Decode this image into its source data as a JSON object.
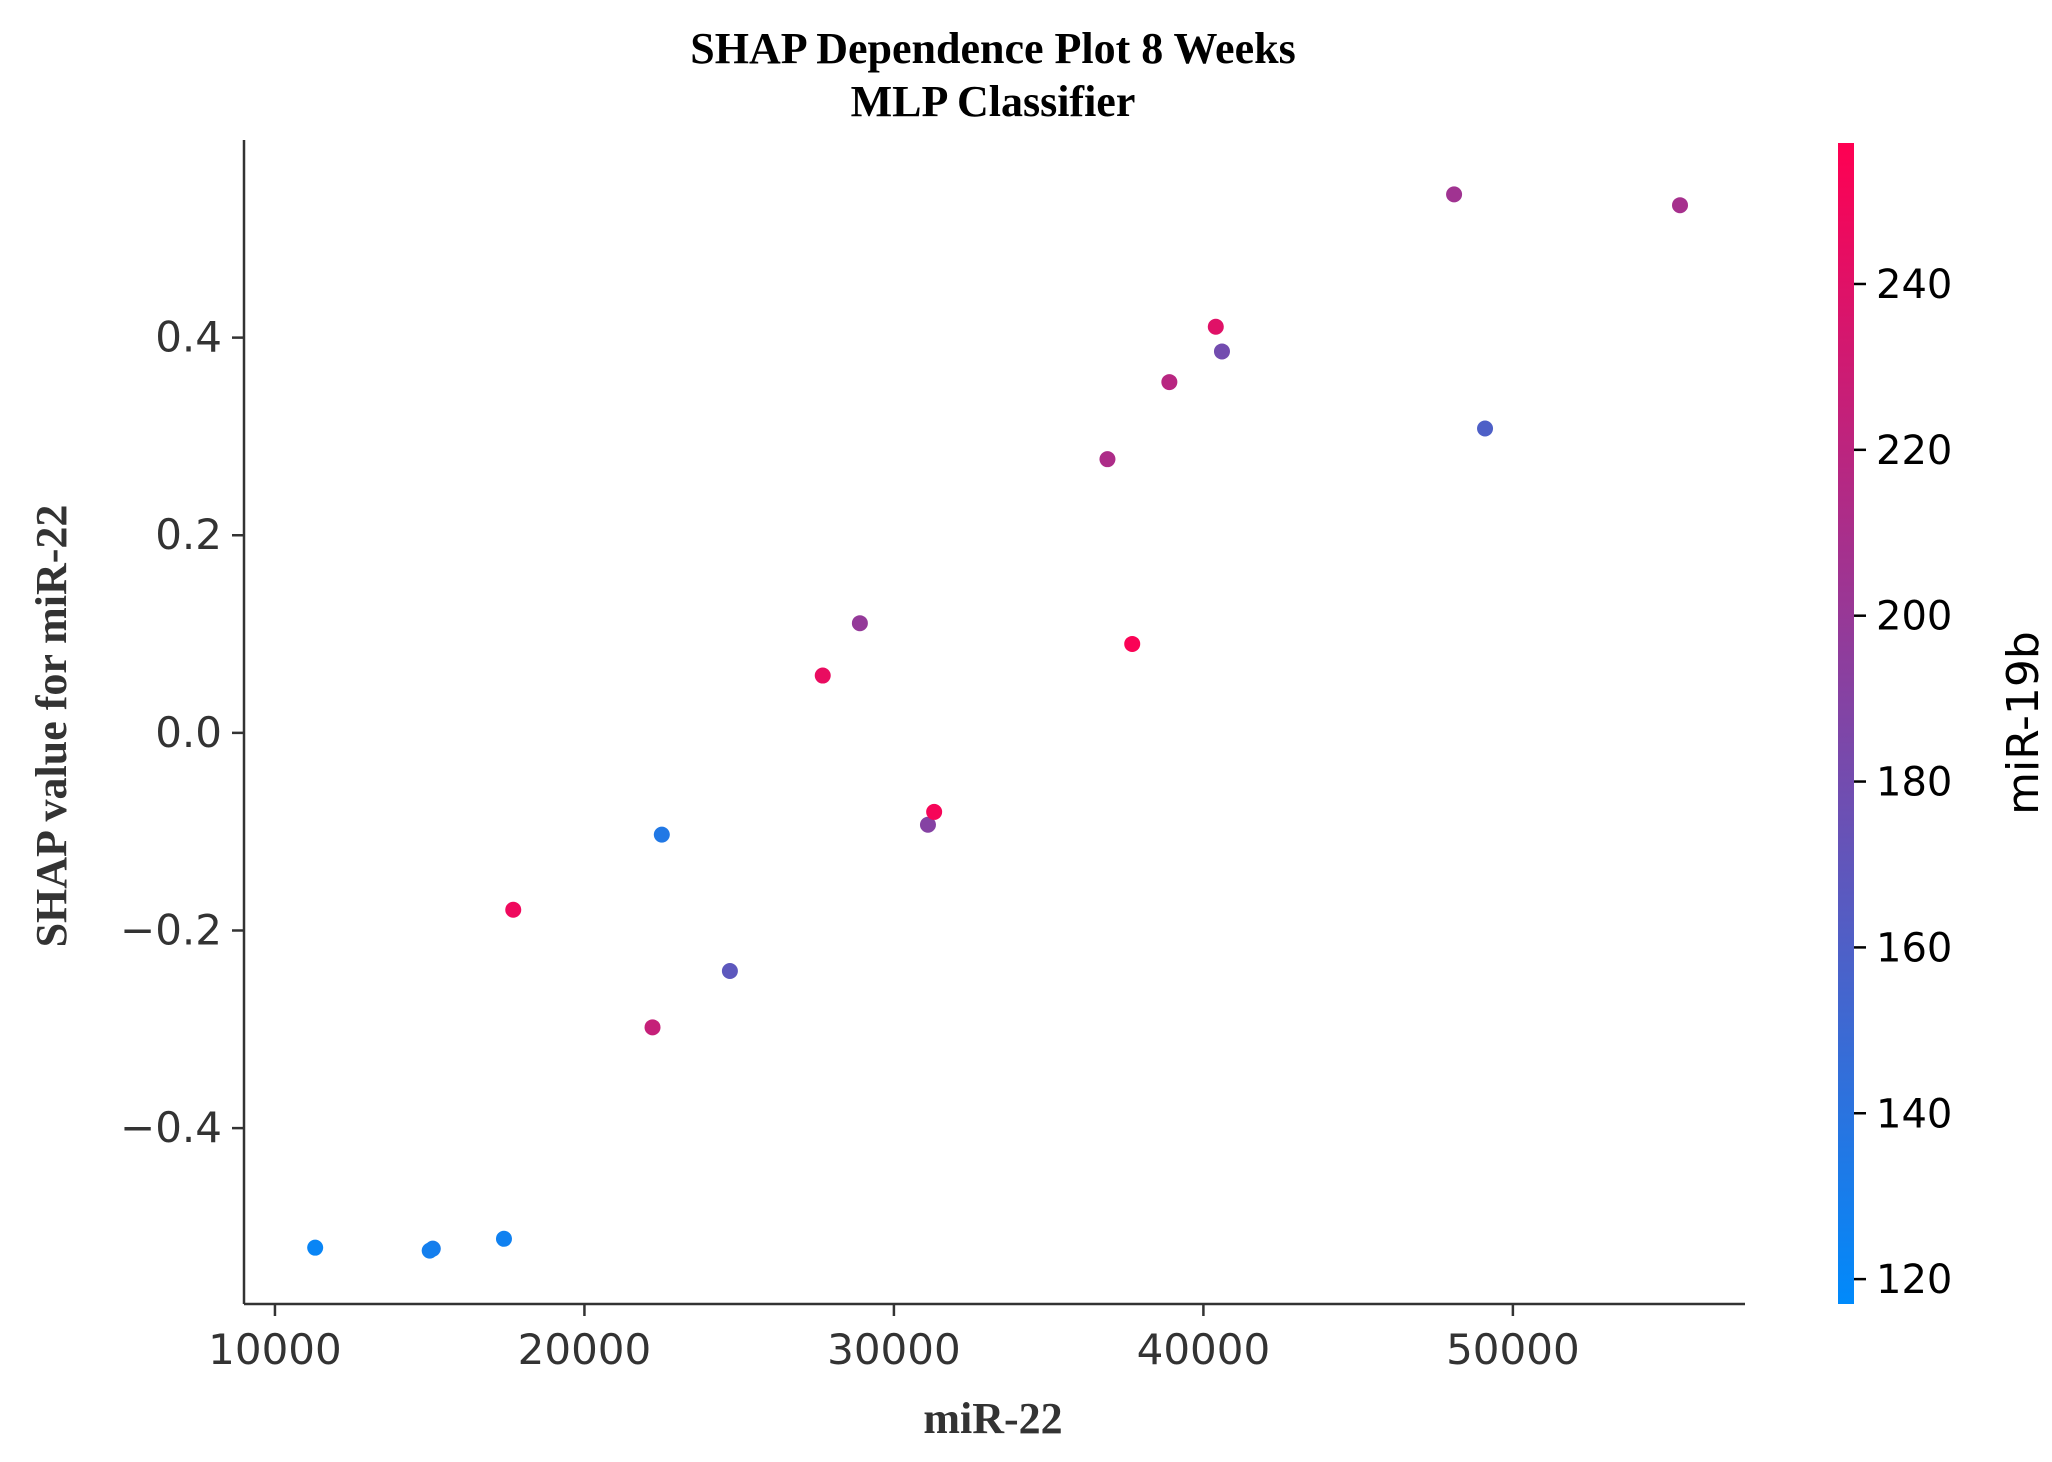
{
  "chart_data": {
    "type": "scatter",
    "title": "SHAP Dependence Plot 8 Weeks",
    "subtitle": "MLP Classifier",
    "xlabel": "miR-22",
    "ylabel": "SHAP value for miR-22",
    "xlim": [
      9000,
      57500
    ],
    "ylim": [
      -0.578,
      0.6
    ],
    "x_ticks": [
      10000,
      20000,
      30000,
      40000,
      50000
    ],
    "x_tick_labels": [
      "10000",
      "20000",
      "30000",
      "40000",
      "50000"
    ],
    "y_ticks": [
      0.4,
      0.2,
      0.0,
      -0.2,
      -0.4
    ],
    "y_tick_labels": [
      "0.4",
      "0.2",
      "0.0",
      "−0.2",
      "−0.4"
    ],
    "colorbar": {
      "label": "miR-19b",
      "range": [
        117,
        257
      ],
      "ticks": [
        120,
        140,
        160,
        180,
        200,
        220,
        240
      ],
      "tick_labels": [
        "120",
        "140",
        "160",
        "180",
        "200",
        "220",
        "240"
      ],
      "color_low": "#008afb",
      "color_high": "#ff0052"
    },
    "points": [
      {
        "x": 11300,
        "y": -0.521,
        "c": 122
      },
      {
        "x": 15100,
        "y": -0.522,
        "c": 130
      },
      {
        "x": 15000,
        "y": -0.524,
        "c": 128
      },
      {
        "x": 17400,
        "y": -0.512,
        "c": 126
      },
      {
        "x": 17700,
        "y": -0.179,
        "c": 248
      },
      {
        "x": 22200,
        "y": -0.298,
        "c": 225
      },
      {
        "x": 22500,
        "y": -0.103,
        "c": 135
      },
      {
        "x": 24700,
        "y": -0.241,
        "c": 168
      },
      {
        "x": 27700,
        "y": 0.058,
        "c": 245
      },
      {
        "x": 28900,
        "y": 0.111,
        "c": 198
      },
      {
        "x": 31100,
        "y": -0.093,
        "c": 190
      },
      {
        "x": 31300,
        "y": -0.08,
        "c": 252
      },
      {
        "x": 36900,
        "y": 0.277,
        "c": 212
      },
      {
        "x": 37700,
        "y": 0.09,
        "c": 254
      },
      {
        "x": 38900,
        "y": 0.355,
        "c": 218
      },
      {
        "x": 40400,
        "y": 0.411,
        "c": 240
      },
      {
        "x": 40600,
        "y": 0.386,
        "c": 180
      },
      {
        "x": 48100,
        "y": 0.545,
        "c": 205
      },
      {
        "x": 49100,
        "y": 0.308,
        "c": 160
      },
      {
        "x": 55400,
        "y": 0.534,
        "c": 208
      }
    ]
  }
}
